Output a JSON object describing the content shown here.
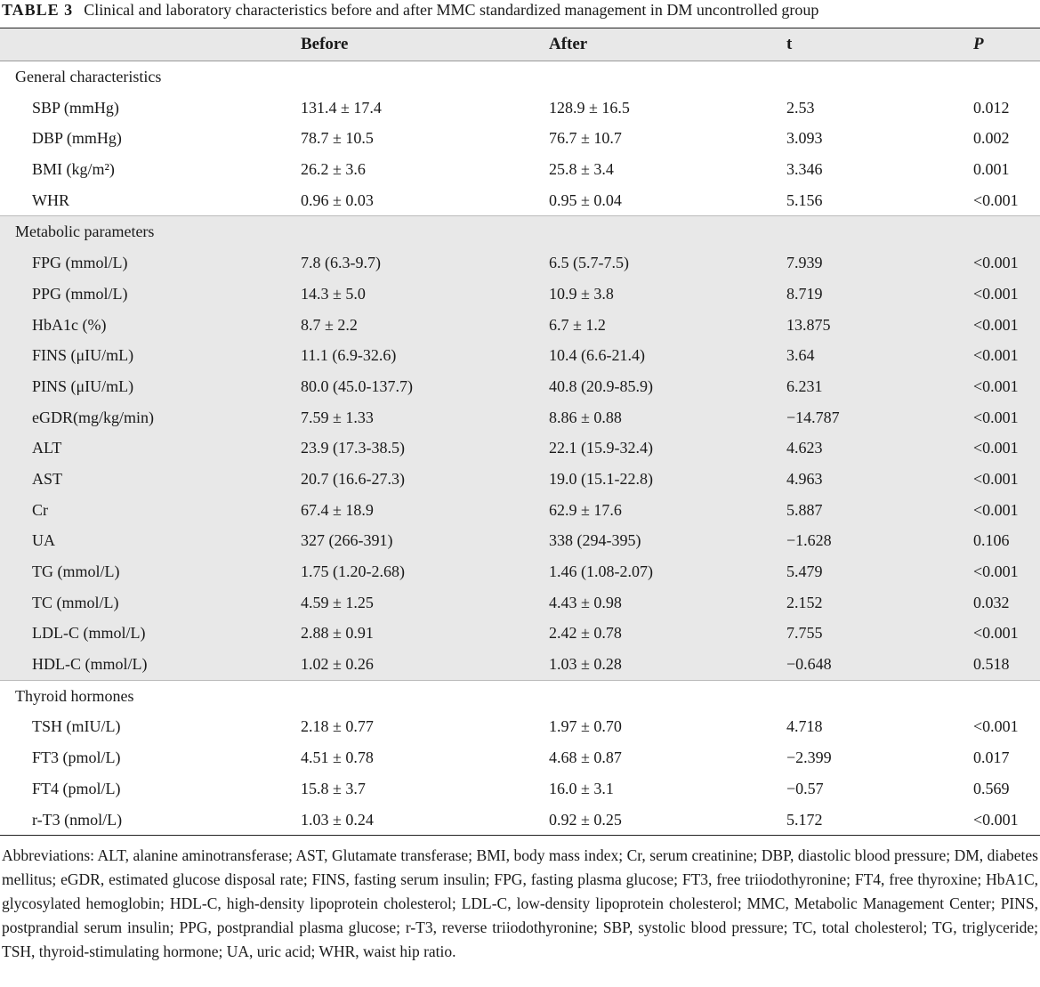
{
  "caption": {
    "label": "TABLE 3",
    "text": "Clinical and laboratory characteristics before and after MMC standardized management in DM uncontrolled group"
  },
  "header": {
    "col0": "",
    "before": "Before",
    "after": "After",
    "t": "t",
    "p": "P"
  },
  "sections": [
    {
      "title": "General characteristics",
      "shaded": false,
      "rows": [
        {
          "label": "SBP (mmHg)",
          "before": "131.4 ± 17.4",
          "after": "128.9 ± 16.5",
          "t": "2.53",
          "p": "0.012"
        },
        {
          "label": "DBP (mmHg)",
          "before": "78.7 ± 10.5",
          "after": "76.7 ± 10.7",
          "t": "3.093",
          "p": "0.002"
        },
        {
          "label": "BMI (kg/m²)",
          "before": "26.2 ± 3.6",
          "after": "25.8 ± 3.4",
          "t": "3.346",
          "p": "0.001"
        },
        {
          "label": "WHR",
          "before": "0.96 ± 0.03",
          "after": "0.95 ± 0.04",
          "t": "5.156",
          "p": "<0.001"
        }
      ]
    },
    {
      "title": "Metabolic parameters",
      "shaded": true,
      "rows": [
        {
          "label": "FPG (mmol/L)",
          "before": "7.8 (6.3-9.7)",
          "after": "6.5 (5.7-7.5)",
          "t": "7.939",
          "p": "<0.001"
        },
        {
          "label": "PPG (mmol/L)",
          "before": "14.3 ± 5.0",
          "after": "10.9 ± 3.8",
          "t": "8.719",
          "p": "<0.001"
        },
        {
          "label": "HbA1c (%)",
          "before": "8.7 ± 2.2",
          "after": "6.7 ± 1.2",
          "t": "13.875",
          "p": "<0.001"
        },
        {
          "label": "FINS (μIU/mL)",
          "before": "11.1 (6.9-32.6)",
          "after": "10.4 (6.6-21.4)",
          "t": "3.64",
          "p": "<0.001"
        },
        {
          "label": "PINS (μIU/mL)",
          "before": "80.0 (45.0-137.7)",
          "after": "40.8 (20.9-85.9)",
          "t": "6.231",
          "p": "<0.001"
        },
        {
          "label": "eGDR(mg/kg/min)",
          "before": "7.59 ± 1.33",
          "after": "8.86 ± 0.88",
          "t": "−14.787",
          "p": "<0.001"
        },
        {
          "label": "ALT",
          "before": "23.9 (17.3-38.5)",
          "after": "22.1 (15.9-32.4)",
          "t": "4.623",
          "p": "<0.001"
        },
        {
          "label": "AST",
          "before": "20.7 (16.6-27.3)",
          "after": "19.0 (15.1-22.8)",
          "t": "4.963",
          "p": "<0.001"
        },
        {
          "label": "Cr",
          "before": "67.4 ± 18.9",
          "after": "62.9 ± 17.6",
          "t": "5.887",
          "p": "<0.001"
        },
        {
          "label": "UA",
          "before": "327 (266-391)",
          "after": "338 (294-395)",
          "t": "−1.628",
          "p": "0.106"
        },
        {
          "label": "TG (mmol/L)",
          "before": "1.75 (1.20-2.68)",
          "after": "1.46 (1.08-2.07)",
          "t": "5.479",
          "p": "<0.001"
        },
        {
          "label": "TC (mmol/L)",
          "before": "4.59 ± 1.25",
          "after": "4.43 ± 0.98",
          "t": "2.152",
          "p": "0.032"
        },
        {
          "label": "LDL-C (mmol/L)",
          "before": "2.88 ± 0.91",
          "after": "2.42 ± 0.78",
          "t": "7.755",
          "p": "<0.001"
        },
        {
          "label": "HDL-C (mmol/L)",
          "before": "1.02 ± 0.26",
          "after": "1.03 ± 0.28",
          "t": "−0.648",
          "p": "0.518"
        }
      ]
    },
    {
      "title": "Thyroid hormones",
      "shaded": false,
      "rows": [
        {
          "label": "TSH (mIU/L)",
          "before": "2.18 ± 0.77",
          "after": "1.97 ± 0.70",
          "t": "4.718",
          "p": "<0.001"
        },
        {
          "label": "FT3 (pmol/L)",
          "before": "4.51 ± 0.78",
          "after": "4.68 ± 0.87",
          "t": "−2.399",
          "p": "0.017"
        },
        {
          "label": "FT4 (pmol/L)",
          "before": "15.8 ± 3.7",
          "after": "16.0 ± 3.1",
          "t": "−0.57",
          "p": "0.569"
        },
        {
          "label": "r-T3 (nmol/L)",
          "before": "1.03 ± 0.24",
          "after": "0.92 ± 0.25",
          "t": "5.172",
          "p": "<0.001"
        }
      ]
    }
  ],
  "footnote": "Abbreviations: ALT, alanine aminotransferase; AST, Glutamate transferase; BMI, body mass index; Cr, serum creatinine; DBP, diastolic blood pressure; DM, diabetes mellitus; eGDR, estimated glucose disposal rate; FINS, fasting serum insulin; FPG, fasting plasma glucose; FT3, free triiodothyronine; FT4, free thyroxine; HbA1C, glycosylated hemoglobin; HDL-C, high-density lipoprotein cholesterol; LDL-C, low-density lipoprotein cholesterol; MMC, Metabolic Management Center; PINS, postprandial serum insulin; PPG, postprandial plasma glucose; r-T3, reverse triiodothyronine; SBP, systolic blood pressure; TC, total cholesterol; TG, triglyceride; TSH, thyroid-stimulating hormone; UA, uric acid; WHR, waist hip ratio."
}
